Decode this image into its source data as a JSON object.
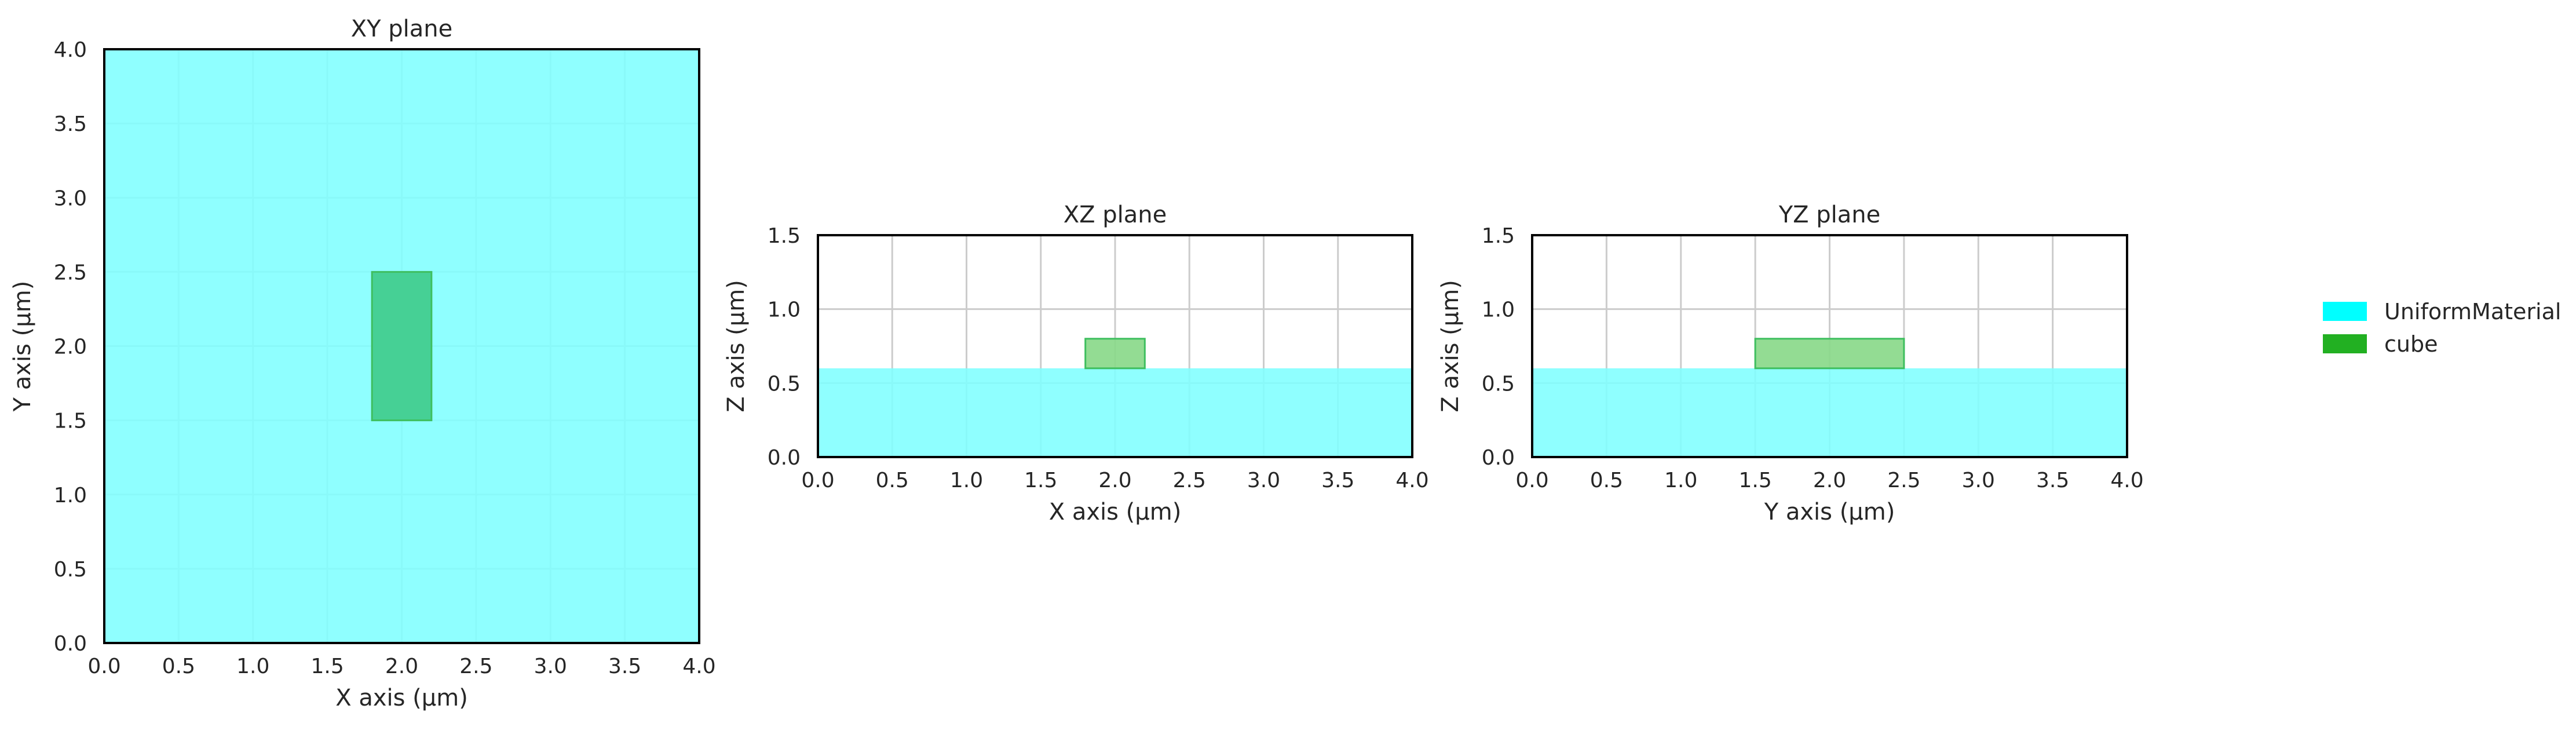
{
  "chart_data": [
    {
      "type": "area",
      "title": "XY plane",
      "xlabel": "X axis (µm)",
      "ylabel": "Y axis (µm)",
      "xlim": [
        0.0,
        4.0
      ],
      "ylim": [
        0.0,
        4.0
      ],
      "xticks": [
        "0.0",
        "0.5",
        "1.0",
        "1.5",
        "2.0",
        "2.5",
        "3.0",
        "3.5",
        "4.0"
      ],
      "yticks": [
        "0.0",
        "0.5",
        "1.0",
        "1.5",
        "2.0",
        "2.5",
        "3.0",
        "3.5",
        "4.0"
      ],
      "grid": true,
      "regions": [
        {
          "name": "UniformMaterial",
          "x": [
            0.0,
            4.0
          ],
          "y": [
            0.0,
            4.0
          ]
        },
        {
          "name": "cube",
          "x": [
            1.8,
            2.2
          ],
          "y": [
            1.5,
            2.5
          ]
        }
      ]
    },
    {
      "type": "area",
      "title": "XZ plane",
      "xlabel": "X axis (µm)",
      "ylabel": "Z axis (µm)",
      "xlim": [
        0.0,
        4.0
      ],
      "ylim": [
        0.0,
        1.5
      ],
      "xticks": [
        "0.0",
        "0.5",
        "1.0",
        "1.5",
        "2.0",
        "2.5",
        "3.0",
        "3.5",
        "4.0"
      ],
      "yticks": [
        "0.0",
        "0.5",
        "1.0",
        "1.5"
      ],
      "grid": true,
      "regions": [
        {
          "name": "UniformMaterial",
          "x": [
            0.0,
            4.0
          ],
          "y": [
            0.0,
            0.6
          ]
        },
        {
          "name": "cube",
          "x": [
            1.8,
            2.2
          ],
          "y": [
            0.6,
            0.8
          ]
        }
      ]
    },
    {
      "type": "area",
      "title": "YZ plane",
      "xlabel": "Y axis (µm)",
      "ylabel": "Z axis (µm)",
      "xlim": [
        0.0,
        4.0
      ],
      "ylim": [
        0.0,
        1.5
      ],
      "xticks": [
        "0.0",
        "0.5",
        "1.0",
        "1.5",
        "2.0",
        "2.5",
        "3.0",
        "3.5",
        "4.0"
      ],
      "yticks": [
        "0.0",
        "0.5",
        "1.0",
        "1.5"
      ],
      "grid": true,
      "regions": [
        {
          "name": "UniformMaterial",
          "x": [
            0.0,
            4.0
          ],
          "y": [
            0.0,
            0.6
          ]
        },
        {
          "name": "cube",
          "x": [
            1.5,
            2.5
          ],
          "y": [
            0.6,
            0.8
          ]
        }
      ]
    }
  ],
  "legend": {
    "position": "right",
    "entries": [
      {
        "label": "UniformMaterial",
        "color": "#00ffff"
      },
      {
        "label": "cube",
        "color": "#22b022"
      }
    ]
  },
  "colors": {
    "uniform_fill": "#80ffff",
    "cube_fill_xy": "#40cc8c",
    "cube_fill_side": "#8ad98a",
    "cube_stroke": "#3fbf5f",
    "grid": "#cccccc",
    "frame": "#000000"
  }
}
